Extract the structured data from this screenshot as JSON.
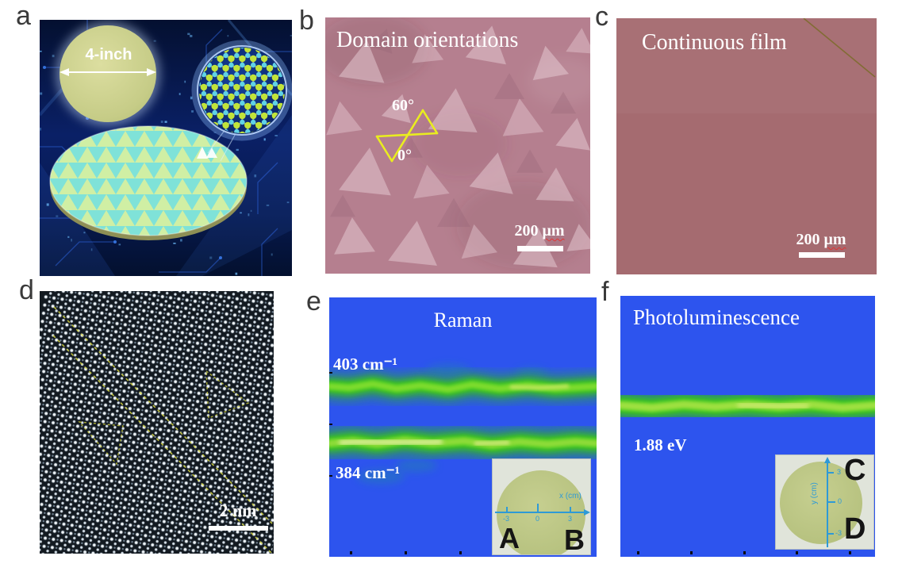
{
  "panel_a": {
    "label": "a",
    "wafer_diameter": "4-inch"
  },
  "panel_b": {
    "label": "b",
    "title": "Domain orientations",
    "angle_upper": "60°",
    "angle_lower": "0°",
    "scalebar_value": "200",
    "scalebar_unit": "μm"
  },
  "panel_c": {
    "label": "c",
    "title": "Continuous film",
    "scalebar_value": "200",
    "scalebar_unit": "μm"
  },
  "panel_d": {
    "label": "d",
    "scalebar": "2 nm"
  },
  "panel_e": {
    "label": "e",
    "title": "Raman",
    "upper_band_label": "403 cm⁻¹",
    "lower_band_label": "384 cm⁻¹",
    "inset": {
      "axis_label": "x (cm)",
      "ticks": [
        "-3",
        "0",
        "3"
      ],
      "corner_left": "A",
      "corner_right": "B"
    }
  },
  "panel_f": {
    "label": "f",
    "title": "Photoluminescence",
    "energy_label": "1.88 eV",
    "inset": {
      "axis_label": "y (cm)",
      "ticks": [
        "3",
        "0",
        "-3"
      ],
      "corner_top": "C",
      "corner_bottom": "D"
    }
  },
  "colors": {
    "map_blue": "#2d54ee",
    "band_green": "#3ecb16",
    "band_hotspot": "#cdea4e",
    "panel_b_background": "#b57f8f",
    "panel_c_background": "#a56b70",
    "marker_yellow": "#e9ed1f",
    "wafer_green": "#bcc985",
    "inset_axis_blue": "#2e9ad6"
  }
}
